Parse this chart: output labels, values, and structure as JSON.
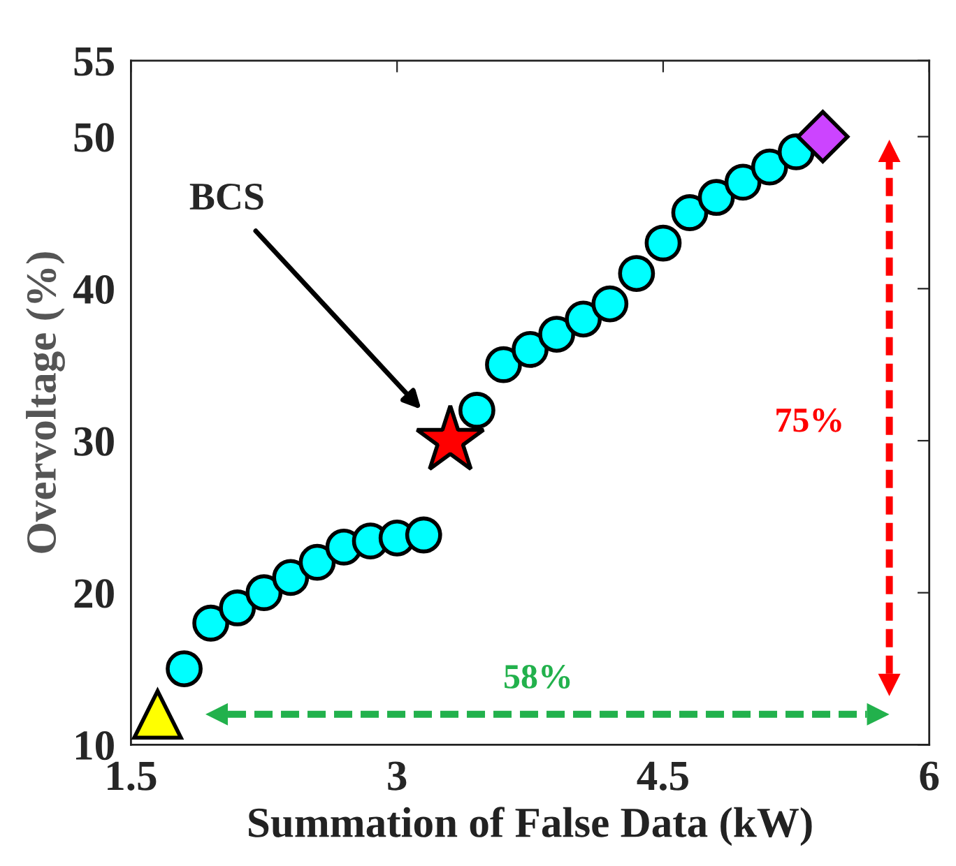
{
  "chart_data": {
    "type": "scatter",
    "xlabel": "Summation of False Data (kW)",
    "ylabel": "Overvoltage (%)",
    "xlim": [
      1.5,
      6
    ],
    "xticks": [
      1.5,
      3,
      4.5,
      6
    ],
    "ylim": [
      10,
      55
    ],
    "yticks": [
      10,
      20,
      30,
      40,
      50,
      55
    ],
    "grid": false,
    "series": [
      {
        "color": "#ffff00",
        "marker": "triangle",
        "x": [
          1.65
        ],
        "values": [
          12
        ]
      },
      {
        "color": "#00ffff",
        "marker": "circle",
        "x": [
          1.8,
          1.95,
          2.1,
          2.25,
          2.4,
          2.55,
          2.7,
          2.85,
          3.0,
          3.15,
          3.45,
          3.6,
          3.75,
          3.9,
          4.05,
          4.2,
          4.35,
          4.5,
          4.65,
          4.8,
          4.95,
          5.1,
          5.25
        ],
        "values": [
          15,
          18,
          19,
          20,
          21,
          22,
          23,
          23.4,
          23.6,
          23.8,
          32,
          35,
          36,
          37,
          38,
          39,
          41,
          43,
          45,
          46,
          47,
          48,
          49
        ]
      },
      {
        "color": "#ff0000",
        "marker": "star",
        "x": [
          3.3
        ],
        "values": [
          30
        ]
      },
      {
        "color": "#cc44ff",
        "marker": "diamond",
        "x": [
          5.4
        ],
        "values": [
          50
        ]
      }
    ],
    "annotations": [
      "BCS",
      "58%",
      "75%"
    ]
  }
}
